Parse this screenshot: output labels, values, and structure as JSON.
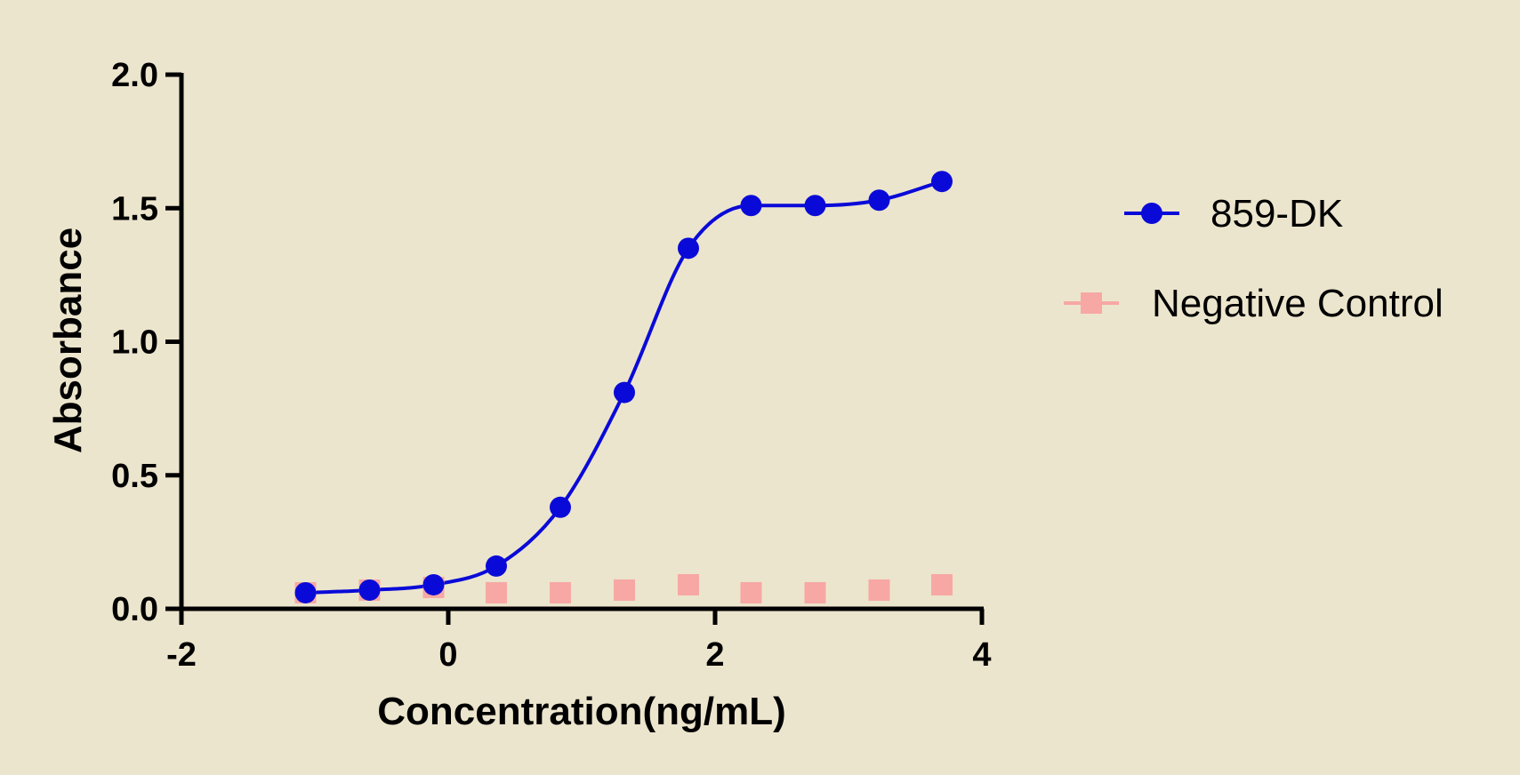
{
  "chart_data": {
    "type": "scatter",
    "title": "",
    "xlabel": "Concentration(ng/mL)",
    "ylabel": "Absorbance",
    "xlim": [
      -2,
      4
    ],
    "ylim": [
      0,
      2.0
    ],
    "x_ticks": [
      "-2",
      "0",
      "2",
      "4"
    ],
    "y_ticks": [
      "0.0",
      "0.5",
      "1.0",
      "1.5",
      "2.0"
    ],
    "grid": false,
    "legend_position": "right",
    "series": [
      {
        "name": "859-DK",
        "marker": "circle",
        "color": "#0a0ad8",
        "fit_line": true,
        "x": [
          -1.07,
          -0.59,
          -0.11,
          0.36,
          0.84,
          1.32,
          1.8,
          2.27,
          2.75,
          3.23,
          3.7
        ],
        "y": [
          0.06,
          0.07,
          0.09,
          0.16,
          0.38,
          0.81,
          1.35,
          1.51,
          1.51,
          1.53,
          1.6
        ]
      },
      {
        "name": "Negative Control",
        "marker": "square",
        "color": "#f7a8a4",
        "fit_line": false,
        "x": [
          -1.07,
          -0.59,
          -0.11,
          0.36,
          0.84,
          1.32,
          1.8,
          2.27,
          2.75,
          3.23,
          3.7
        ],
        "y": [
          0.06,
          0.07,
          0.08,
          0.06,
          0.06,
          0.07,
          0.09,
          0.06,
          0.06,
          0.07,
          0.09
        ]
      }
    ]
  }
}
